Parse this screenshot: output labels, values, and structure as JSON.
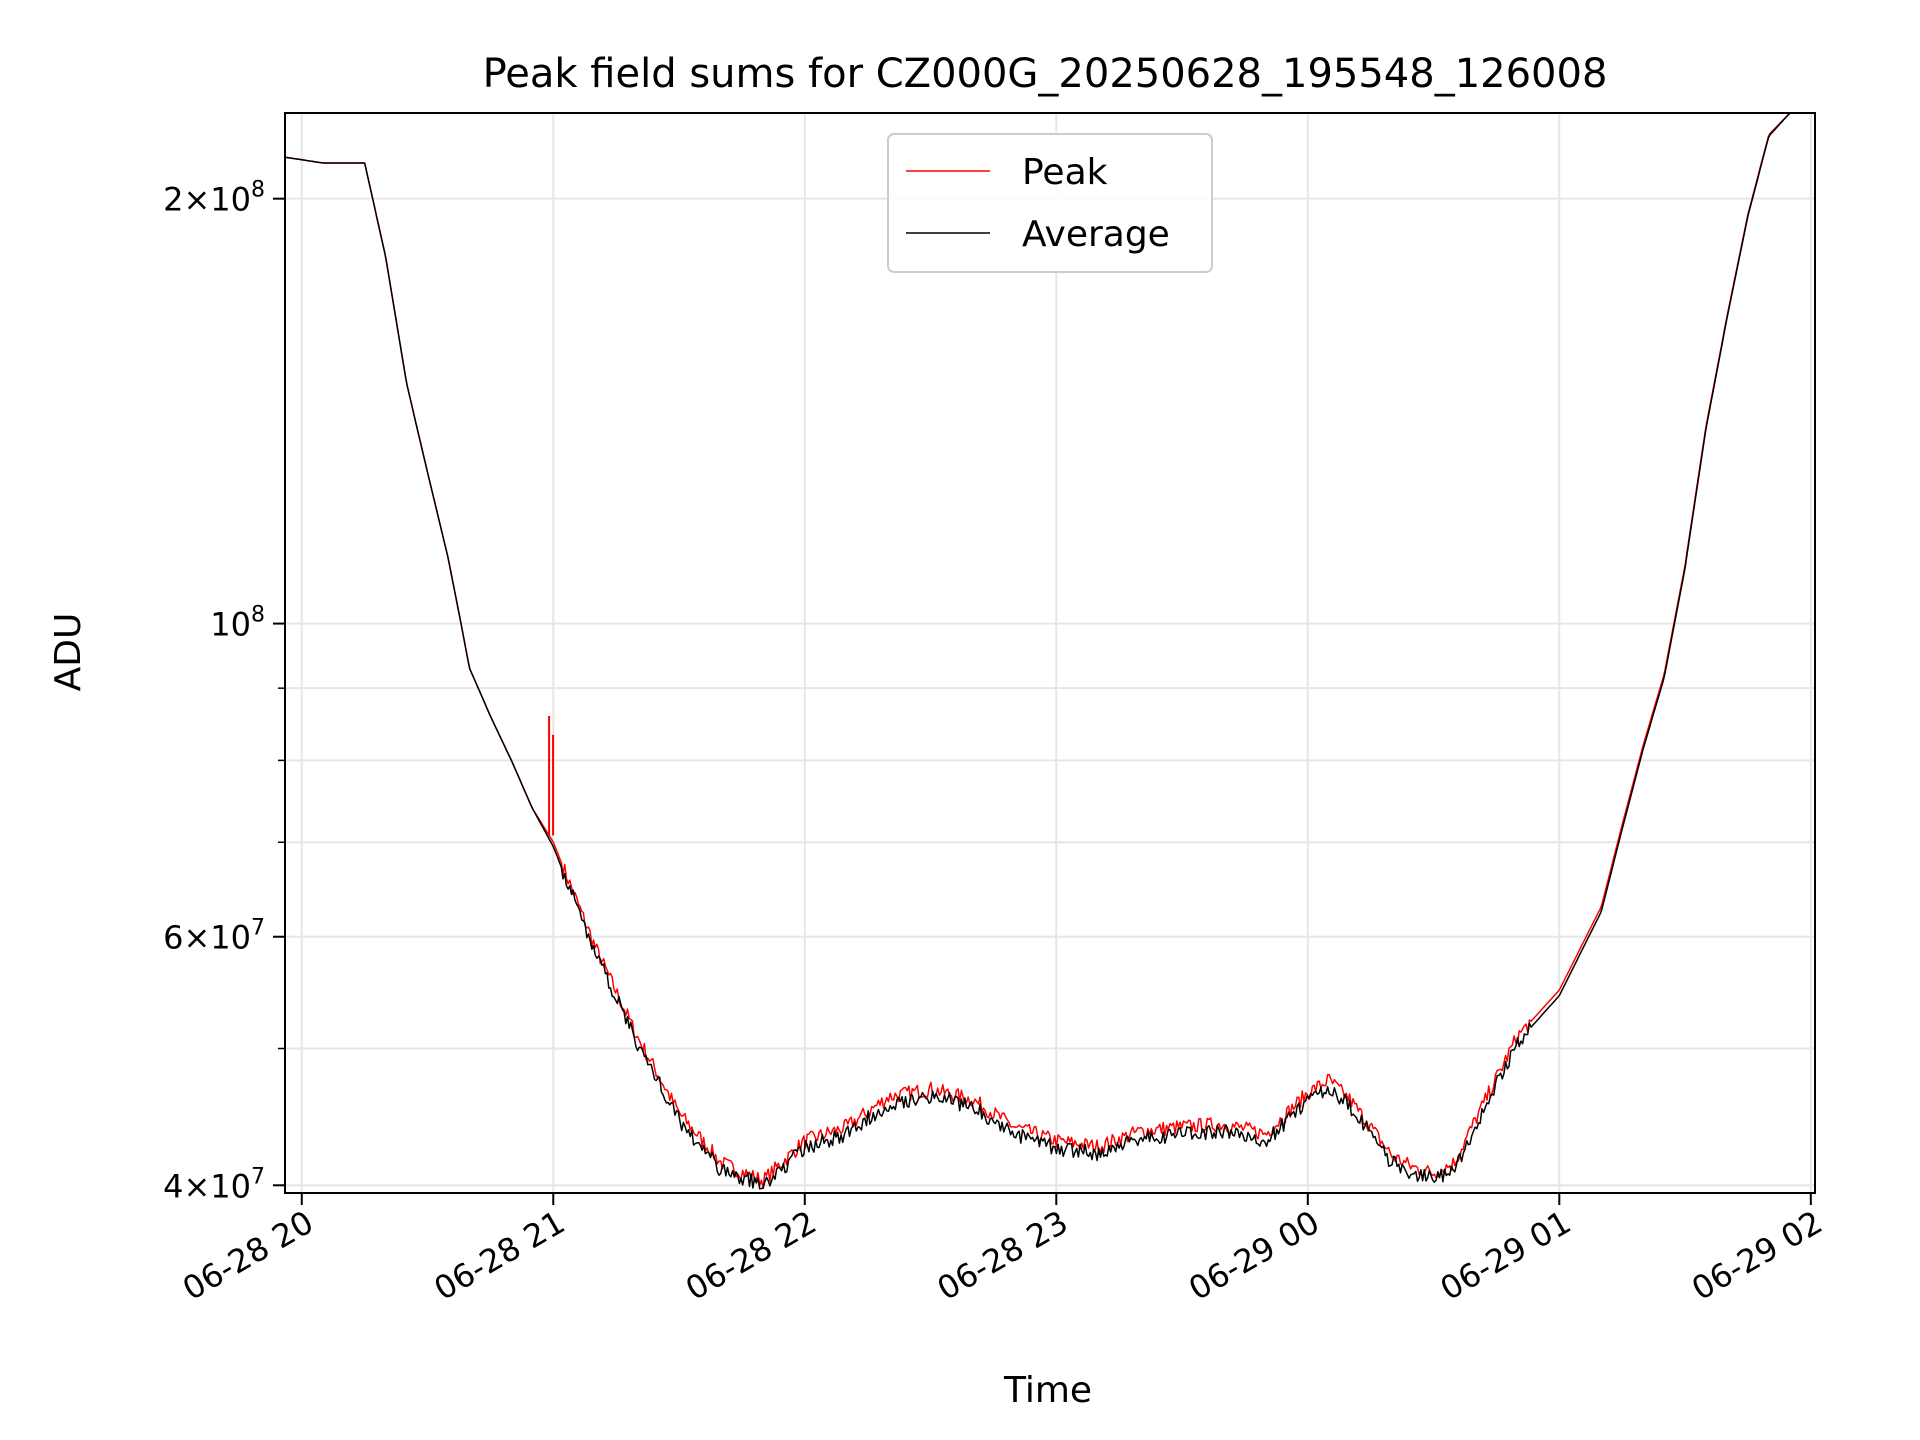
{
  "chart_data": {
    "type": "line",
    "title": "Peak field sums for CZ000G_20250628_195548_126008",
    "xlabel": "Time",
    "ylabel": "ADU",
    "yscale": "log",
    "ylim": [
      39500000,
      230000000
    ],
    "xlim": [
      "2025-06-28 19:56",
      "2025-06-29 02:01"
    ],
    "grid": true,
    "legend": "upper-center",
    "x_ticks": [
      {
        "value": "2025-06-28 20:00",
        "label": "06-28 20"
      },
      {
        "value": "2025-06-28 21:00",
        "label": "06-28 21"
      },
      {
        "value": "2025-06-28 22:00",
        "label": "06-28 22"
      },
      {
        "value": "2025-06-28 23:00",
        "label": "06-28 23"
      },
      {
        "value": "2025-06-29 00:00",
        "label": "06-29 00"
      },
      {
        "value": "2025-06-29 01:00",
        "label": "06-29 01"
      },
      {
        "value": "2025-06-29 02:00",
        "label": "06-29 02"
      }
    ],
    "y_major_ticks": [
      {
        "value": 40000000,
        "base": "4×10",
        "exp": "7"
      },
      {
        "value": 60000000,
        "base": "6×10",
        "exp": "7"
      },
      {
        "value": 100000000,
        "base": "10",
        "exp": "8"
      },
      {
        "value": 200000000,
        "base": "2×10",
        "exp": "8"
      }
    ],
    "y_minor_ticks": [
      50000000,
      70000000,
      80000000,
      90000000
    ],
    "x": [
      "2025-06-28 19:56",
      "2025-06-28 20:05",
      "2025-06-28 20:15",
      "2025-06-28 20:20",
      "2025-06-28 20:25",
      "2025-06-28 20:30",
      "2025-06-28 20:35",
      "2025-06-28 20:38",
      "2025-06-28 20:40",
      "2025-06-28 20:45",
      "2025-06-28 20:50",
      "2025-06-28 20:55",
      "2025-06-28 21:00",
      "2025-06-28 21:10",
      "2025-06-28 21:20",
      "2025-06-28 21:30",
      "2025-06-28 21:40",
      "2025-06-28 21:50",
      "2025-06-28 22:00",
      "2025-06-28 22:10",
      "2025-06-28 22:20",
      "2025-06-28 22:30",
      "2025-06-28 22:40",
      "2025-06-28 22:50",
      "2025-06-28 23:00",
      "2025-06-28 23:10",
      "2025-06-28 23:20",
      "2025-06-28 23:30",
      "2025-06-28 23:40",
      "2025-06-28 23:50",
      "2025-06-29 00:00",
      "2025-06-29 00:05",
      "2025-06-29 00:10",
      "2025-06-29 00:15",
      "2025-06-29 00:20",
      "2025-06-29 00:25",
      "2025-06-29 00:30",
      "2025-06-29 00:35",
      "2025-06-29 00:40",
      "2025-06-29 00:50",
      "2025-06-29 01:00",
      "2025-06-29 01:10",
      "2025-06-29 01:15",
      "2025-06-29 01:20",
      "2025-06-29 01:25",
      "2025-06-29 01:30",
      "2025-06-29 01:35",
      "2025-06-29 01:40",
      "2025-06-29 01:45",
      "2025-06-29 01:50",
      "2025-06-29 01:55",
      "2025-06-29 02:00"
    ],
    "series": [
      {
        "name": "Peak",
        "color": "#ff0000",
        "values": [
          214000000,
          212000000,
          212000000,
          182000000,
          148000000,
          128000000,
          111000000,
          100000000,
          93000000,
          86000000,
          80000000,
          74000000,
          70000000,
          59000000,
          51000000,
          45000000,
          41500000,
          40300000,
          43000000,
          44000000,
          46200000,
          46800000,
          46000000,
          44000000,
          43000000,
          42600000,
          43700000,
          44000000,
          44200000,
          43500000,
          46500000,
          47500000,
          46000000,
          44000000,
          42000000,
          41200000,
          40800000,
          41500000,
          44500000,
          51000000,
          55000000,
          63000000,
          72000000,
          82000000,
          92000000,
          110000000,
          138000000,
          165000000,
          195000000,
          222000000,
          230000000,
          230000000
        ]
      },
      {
        "name": "Average",
        "color": "#000000",
        "values": [
          214000000,
          212000000,
          212000000,
          182000000,
          148000000,
          128000000,
          111000000,
          100000000,
          93000000,
          86000000,
          80000000,
          74000000,
          69500000,
          58500000,
          50500000,
          44500000,
          41000000,
          40000000,
          42500000,
          43500000,
          45700000,
          46300000,
          45500000,
          43500000,
          42500000,
          42100000,
          43200000,
          43500000,
          43700000,
          43000000,
          46000000,
          47000000,
          45500000,
          43500000,
          41500000,
          40800000,
          40400000,
          41000000,
          44000000,
          50500000,
          54500000,
          62500000,
          71500000,
          81500000,
          91500000,
          109500000,
          137500000,
          164500000,
          194500000,
          221500000,
          230000000,
          230000000
        ]
      }
    ],
    "annotations": [
      {
        "series": "Peak",
        "x": "2025-06-28 20:59",
        "value": 86000000,
        "note": "spike"
      }
    ]
  }
}
